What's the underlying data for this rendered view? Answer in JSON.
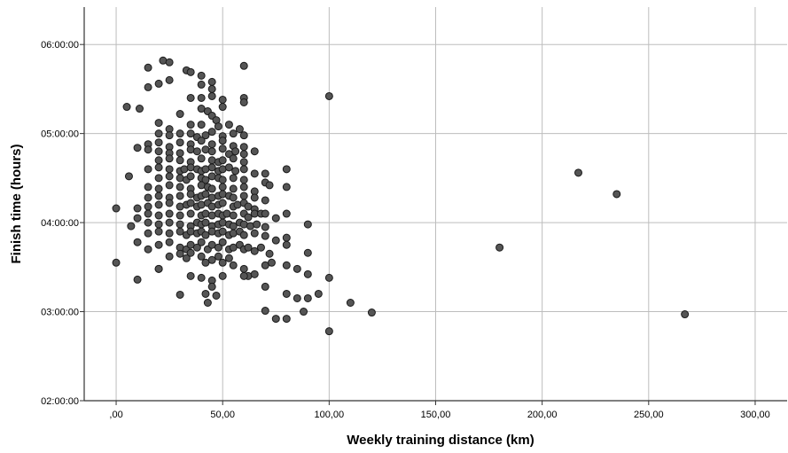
{
  "chart_data": {
    "type": "scatter",
    "title": "",
    "xlabel": "Weekly training distance (km)",
    "ylabel": "Finish time (hours)",
    "xlim": [
      -15,
      315
    ],
    "ylim": [
      2.0,
      6.42
    ],
    "grid": true,
    "marker_color": "#555555",
    "marker_edge_color": "#1a1a1a",
    "x_ticks": [
      {
        "value": 0,
        "label": ",00"
      },
      {
        "value": 50,
        "label": "50,00"
      },
      {
        "value": 100,
        "label": "100,00"
      },
      {
        "value": 150,
        "label": "150,00"
      },
      {
        "value": 200,
        "label": "200,00"
      },
      {
        "value": 250,
        "label": "250,00"
      },
      {
        "value": 300,
        "label": "300,00"
      }
    ],
    "y_ticks": [
      {
        "value": 2,
        "label": "02:00:00"
      },
      {
        "value": 3,
        "label": "03:00:00"
      },
      {
        "value": 4,
        "label": "04:00:00"
      },
      {
        "value": 5,
        "label": "05:00:00"
      },
      {
        "value": 6,
        "label": "06:00:00"
      }
    ],
    "points": [
      [
        22,
        5.82
      ],
      [
        25,
        5.8
      ],
      [
        15,
        5.74
      ],
      [
        33,
        5.71
      ],
      [
        35,
        5.69
      ],
      [
        40,
        5.65
      ],
      [
        60,
        5.76
      ],
      [
        45,
        5.58
      ],
      [
        25,
        5.6
      ],
      [
        15,
        5.52
      ],
      [
        20,
        5.56
      ],
      [
        40,
        5.55
      ],
      [
        45,
        5.5
      ],
      [
        35,
        5.4
      ],
      [
        40,
        5.4
      ],
      [
        45,
        5.42
      ],
      [
        50,
        5.38
      ],
      [
        60,
        5.4
      ],
      [
        60,
        5.35
      ],
      [
        100,
        5.42
      ],
      [
        5,
        5.3
      ],
      [
        11,
        5.28
      ],
      [
        30,
        5.22
      ],
      [
        40,
        5.28
      ],
      [
        43,
        5.25
      ],
      [
        45,
        5.2
      ],
      [
        50,
        5.3
      ],
      [
        47,
        5.15
      ],
      [
        20,
        5.12
      ],
      [
        25,
        5.05
      ],
      [
        35,
        5.1
      ],
      [
        40,
        5.1
      ],
      [
        48,
        5.08
      ],
      [
        53,
        5.1
      ],
      [
        58,
        5.05
      ],
      [
        20,
        5.0
      ],
      [
        25,
        4.98
      ],
      [
        30,
        5.0
      ],
      [
        35,
        5.0
      ],
      [
        38,
        4.96
      ],
      [
        42,
        4.98
      ],
      [
        45,
        5.02
      ],
      [
        50,
        4.97
      ],
      [
        55,
        5.0
      ],
      [
        60,
        4.98
      ],
      [
        15,
        4.88
      ],
      [
        20,
        4.9
      ],
      [
        25,
        4.85
      ],
      [
        30,
        4.9
      ],
      [
        35,
        4.88
      ],
      [
        40,
        4.92
      ],
      [
        45,
        4.88
      ],
      [
        50,
        4.92
      ],
      [
        55,
        4.86
      ],
      [
        60,
        4.85
      ],
      [
        65,
        4.8
      ],
      [
        10,
        4.84
      ],
      [
        15,
        4.82
      ],
      [
        20,
        4.8
      ],
      [
        25,
        4.78
      ],
      [
        30,
        4.78
      ],
      [
        35,
        4.82
      ],
      [
        38,
        4.8
      ],
      [
        42,
        4.82
      ],
      [
        45,
        4.8
      ],
      [
        50,
        4.83
      ],
      [
        53,
        4.77
      ],
      [
        56,
        4.8
      ],
      [
        60,
        4.77
      ],
      [
        20,
        4.7
      ],
      [
        25,
        4.72
      ],
      [
        30,
        4.7
      ],
      [
        35,
        4.68
      ],
      [
        40,
        4.72
      ],
      [
        45,
        4.7
      ],
      [
        48,
        4.68
      ],
      [
        50,
        4.7
      ],
      [
        55,
        4.72
      ],
      [
        60,
        4.68
      ],
      [
        6,
        4.52
      ],
      [
        15,
        4.6
      ],
      [
        20,
        4.62
      ],
      [
        25,
        4.6
      ],
      [
        30,
        4.58
      ],
      [
        32,
        4.6
      ],
      [
        35,
        4.62
      ],
      [
        38,
        4.6
      ],
      [
        40,
        4.58
      ],
      [
        42,
        4.6
      ],
      [
        45,
        4.62
      ],
      [
        48,
        4.58
      ],
      [
        50,
        4.6
      ],
      [
        53,
        4.62
      ],
      [
        56,
        4.58
      ],
      [
        60,
        4.6
      ],
      [
        65,
        4.55
      ],
      [
        70,
        4.55
      ],
      [
        80,
        4.6
      ],
      [
        20,
        4.5
      ],
      [
        25,
        4.52
      ],
      [
        30,
        4.5
      ],
      [
        33,
        4.48
      ],
      [
        35,
        4.52
      ],
      [
        40,
        4.5
      ],
      [
        42,
        4.48
      ],
      [
        45,
        4.52
      ],
      [
        48,
        4.5
      ],
      [
        50,
        4.48
      ],
      [
        55,
        4.5
      ],
      [
        60,
        4.48
      ],
      [
        70,
        4.45
      ],
      [
        72,
        4.42
      ],
      [
        15,
        4.4
      ],
      [
        20,
        4.38
      ],
      [
        25,
        4.42
      ],
      [
        30,
        4.4
      ],
      [
        35,
        4.38
      ],
      [
        40,
        4.42
      ],
      [
        43,
        4.4
      ],
      [
        45,
        4.38
      ],
      [
        50,
        4.4
      ],
      [
        55,
        4.38
      ],
      [
        60,
        4.4
      ],
      [
        65,
        4.35
      ],
      [
        80,
        4.4
      ],
      [
        15,
        4.28
      ],
      [
        20,
        4.3
      ],
      [
        25,
        4.28
      ],
      [
        30,
        4.3
      ],
      [
        35,
        4.32
      ],
      [
        38,
        4.28
      ],
      [
        40,
        4.3
      ],
      [
        42,
        4.32
      ],
      [
        45,
        4.28
      ],
      [
        48,
        4.3
      ],
      [
        50,
        4.32
      ],
      [
        53,
        4.3
      ],
      [
        55,
        4.28
      ],
      [
        60,
        4.3
      ],
      [
        65,
        4.28
      ],
      [
        70,
        4.25
      ],
      [
        0,
        4.16
      ],
      [
        10,
        4.16
      ],
      [
        15,
        4.18
      ],
      [
        20,
        4.2
      ],
      [
        25,
        4.22
      ],
      [
        30,
        4.18
      ],
      [
        33,
        4.2
      ],
      [
        35,
        4.22
      ],
      [
        38,
        4.18
      ],
      [
        40,
        4.2
      ],
      [
        43,
        4.22
      ],
      [
        45,
        4.18
      ],
      [
        48,
        4.2
      ],
      [
        50,
        4.22
      ],
      [
        55,
        4.18
      ],
      [
        57,
        4.2
      ],
      [
        60,
        4.22
      ],
      [
        62,
        4.18
      ],
      [
        65,
        4.15
      ],
      [
        10,
        4.05
      ],
      [
        15,
        4.1
      ],
      [
        20,
        4.08
      ],
      [
        25,
        4.1
      ],
      [
        30,
        4.08
      ],
      [
        35,
        4.1
      ],
      [
        40,
        4.08
      ],
      [
        42,
        4.1
      ],
      [
        45,
        4.08
      ],
      [
        48,
        4.1
      ],
      [
        50,
        4.08
      ],
      [
        52,
        4.1
      ],
      [
        55,
        4.08
      ],
      [
        60,
        4.1
      ],
      [
        62,
        4.06
      ],
      [
        65,
        4.1
      ],
      [
        68,
        4.1
      ],
      [
        70,
        4.1
      ],
      [
        75,
        4.05
      ],
      [
        80,
        4.1
      ],
      [
        7,
        3.96
      ],
      [
        15,
        4.0
      ],
      [
        20,
        3.98
      ],
      [
        25,
        4.0
      ],
      [
        30,
        3.98
      ],
      [
        35,
        3.96
      ],
      [
        38,
        4.0
      ],
      [
        40,
        3.98
      ],
      [
        42,
        4.0
      ],
      [
        45,
        3.96
      ],
      [
        48,
        3.98
      ],
      [
        50,
        4.0
      ],
      [
        53,
        3.98
      ],
      [
        55,
        3.96
      ],
      [
        58,
        4.0
      ],
      [
        60,
        3.98
      ],
      [
        63,
        3.96
      ],
      [
        66,
        3.98
      ],
      [
        70,
        3.95
      ],
      [
        90,
        3.98
      ],
      [
        15,
        3.88
      ],
      [
        20,
        3.9
      ],
      [
        25,
        3.88
      ],
      [
        30,
        3.9
      ],
      [
        33,
        3.86
      ],
      [
        35,
        3.9
      ],
      [
        38,
        3.88
      ],
      [
        40,
        3.9
      ],
      [
        42,
        3.86
      ],
      [
        45,
        3.9
      ],
      [
        48,
        3.88
      ],
      [
        50,
        3.9
      ],
      [
        53,
        3.86
      ],
      [
        55,
        3.88
      ],
      [
        58,
        3.9
      ],
      [
        60,
        3.86
      ],
      [
        65,
        3.88
      ],
      [
        70,
        3.85
      ],
      [
        75,
        3.8
      ],
      [
        80,
        3.83
      ],
      [
        10,
        3.78
      ],
      [
        15,
        3.7
      ],
      [
        20,
        3.75
      ],
      [
        25,
        3.78
      ],
      [
        30,
        3.72
      ],
      [
        33,
        3.7
      ],
      [
        35,
        3.75
      ],
      [
        38,
        3.72
      ],
      [
        40,
        3.78
      ],
      [
        43,
        3.7
      ],
      [
        45,
        3.75
      ],
      [
        48,
        3.72
      ],
      [
        50,
        3.78
      ],
      [
        53,
        3.7
      ],
      [
        55,
        3.72
      ],
      [
        58,
        3.75
      ],
      [
        60,
        3.7
      ],
      [
        62,
        3.72
      ],
      [
        65,
        3.68
      ],
      [
        68,
        3.72
      ],
      [
        72,
        3.65
      ],
      [
        80,
        3.75
      ],
      [
        90,
        3.66
      ],
      [
        180,
        3.72
      ],
      [
        0,
        3.55
      ],
      [
        20,
        3.48
      ],
      [
        25,
        3.62
      ],
      [
        30,
        3.65
      ],
      [
        33,
        3.6
      ],
      [
        35,
        3.66
      ],
      [
        40,
        3.62
      ],
      [
        42,
        3.55
      ],
      [
        45,
        3.58
      ],
      [
        48,
        3.62
      ],
      [
        50,
        3.55
      ],
      [
        53,
        3.6
      ],
      [
        55,
        3.52
      ],
      [
        60,
        3.48
      ],
      [
        62,
        3.4
      ],
      [
        65,
        3.42
      ],
      [
        70,
        3.52
      ],
      [
        73,
        3.55
      ],
      [
        80,
        3.52
      ],
      [
        85,
        3.48
      ],
      [
        90,
        3.42
      ],
      [
        10,
        3.36
      ],
      [
        20,
        3.48
      ],
      [
        35,
        3.4
      ],
      [
        40,
        3.38
      ],
      [
        45,
        3.35
      ],
      [
        50,
        3.4
      ],
      [
        60,
        3.4
      ],
      [
        45,
        3.28
      ],
      [
        42,
        3.2
      ],
      [
        47,
        3.18
      ],
      [
        43,
        3.1
      ],
      [
        30,
        3.19
      ],
      [
        70,
        3.28
      ],
      [
        80,
        3.2
      ],
      [
        85,
        3.15
      ],
      [
        90,
        3.15
      ],
      [
        95,
        3.2
      ],
      [
        100,
        3.38
      ],
      [
        110,
        3.1
      ],
      [
        70,
        3.01
      ],
      [
        75,
        2.92
      ],
      [
        80,
        2.92
      ],
      [
        88,
        3.0
      ],
      [
        100,
        2.78
      ],
      [
        120,
        2.99
      ],
      [
        217,
        4.56
      ],
      [
        235,
        4.32
      ],
      [
        267,
        2.97
      ]
    ]
  }
}
